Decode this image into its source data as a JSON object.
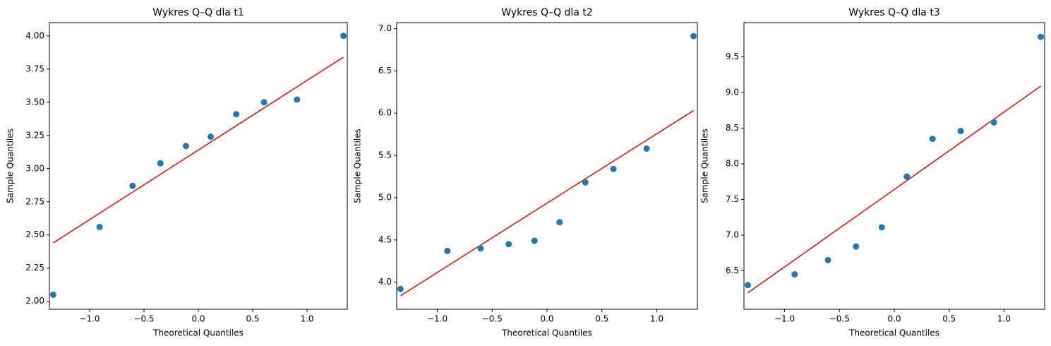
{
  "chart_data": [
    {
      "type": "scatter",
      "title": "Wykres Q–Q dla t1",
      "x_label": "Theoretical Quantiles",
      "y_label": "Sample Quantiles",
      "x": [
        -1.335,
        -0.908,
        -0.605,
        -0.349,
        -0.114,
        0.114,
        0.349,
        0.605,
        0.908,
        1.335
      ],
      "values": [
        2.05,
        2.56,
        2.87,
        3.04,
        3.17,
        3.24,
        3.41,
        3.5,
        3.52,
        4.0
      ],
      "color": "#1f77b4",
      "fit_line": {
        "x": [
          -1.335,
          1.335
        ],
        "values": [
          2.44,
          3.84
        ],
        "color": "#ff0000"
      },
      "xlim": [
        -1.37,
        1.37
      ],
      "ylim": [
        1.94,
        4.1
      ],
      "xticks": [
        {
          "value": -1,
          "label": "−1.0"
        },
        {
          "value": -0.5,
          "label": "−0.5"
        },
        {
          "value": 0,
          "label": "0.0"
        },
        {
          "value": 0.5,
          "label": "0.5"
        },
        {
          "value": 1,
          "label": "1.0"
        }
      ],
      "yticks": [
        {
          "value": 2,
          "label": "2.00"
        },
        {
          "value": 2.25,
          "label": "2.25"
        },
        {
          "value": 2.5,
          "label": "2.50"
        },
        {
          "value": 2.75,
          "label": "2.75"
        },
        {
          "value": 3,
          "label": "3.00"
        },
        {
          "value": 3.25,
          "label": "3.25"
        },
        {
          "value": 3.5,
          "label": "3.50"
        },
        {
          "value": 3.75,
          "label": "3.75"
        },
        {
          "value": 4,
          "label": "4.00"
        }
      ]
    },
    {
      "type": "scatter",
      "title": "Wykres Q–Q dla t2",
      "x_label": "Theoretical Quantiles",
      "y_label": "Sample Quantiles",
      "x": [
        -1.335,
        -0.908,
        -0.605,
        -0.349,
        -0.114,
        0.114,
        0.349,
        0.605,
        0.908,
        1.335
      ],
      "values": [
        3.92,
        4.37,
        4.4,
        4.45,
        4.49,
        4.71,
        5.18,
        5.34,
        5.58,
        6.91
      ],
      "color": "#1f77b4",
      "fit_line": {
        "x": [
          -1.335,
          1.335
        ],
        "values": [
          3.84,
          6.03
        ],
        "color": "#ff0000"
      },
      "xlim": [
        -1.37,
        1.37
      ],
      "ylim": [
        3.68,
        7.07
      ],
      "xticks": [
        {
          "value": -1,
          "label": "−1.0"
        },
        {
          "value": -0.5,
          "label": "−0.5"
        },
        {
          "value": 0,
          "label": "0.0"
        },
        {
          "value": 0.5,
          "label": "0.5"
        },
        {
          "value": 1,
          "label": "1.0"
        }
      ],
      "yticks": [
        {
          "value": 4,
          "label": "4.0"
        },
        4.5,
        {
          "value": 5,
          "label": "5.0"
        },
        5.5,
        {
          "value": 6,
          "label": "6.0"
        },
        6.5,
        {
          "value": 7,
          "label": "7.0"
        }
      ]
    },
    {
      "type": "scatter",
      "title": "Wykres Q–Q dla t3",
      "x_label": "Theoretical Quantiles",
      "y_label": "Sample Quantiles",
      "x": [
        -1.335,
        -0.908,
        -0.605,
        -0.349,
        -0.114,
        0.114,
        0.349,
        0.605,
        0.908,
        1.335
      ],
      "values": [
        6.3,
        6.45,
        6.65,
        6.84,
        7.11,
        7.82,
        8.35,
        8.46,
        8.58,
        9.78
      ],
      "color": "#1f77b4",
      "fit_line": {
        "x": [
          -1.335,
          1.335
        ],
        "values": [
          6.19,
          9.09
        ],
        "color": "#ff0000"
      },
      "xlim": [
        -1.37,
        1.37
      ],
      "ylim": [
        5.96,
        9.98
      ],
      "xticks": [
        {
          "value": -1,
          "label": "−1.0"
        },
        {
          "value": -0.5,
          "label": "−0.5"
        },
        {
          "value": 0,
          "label": "0.0"
        },
        {
          "value": 0.5,
          "label": "0.5"
        },
        {
          "value": 1,
          "label": "1.0"
        }
      ],
      "yticks": [
        6.5,
        {
          "value": 7,
          "label": "7.0"
        },
        7.5,
        {
          "value": 8,
          "label": "8.0"
        },
        8.5,
        {
          "value": 9,
          "label": "9.0"
        },
        9.5
      ]
    }
  ]
}
